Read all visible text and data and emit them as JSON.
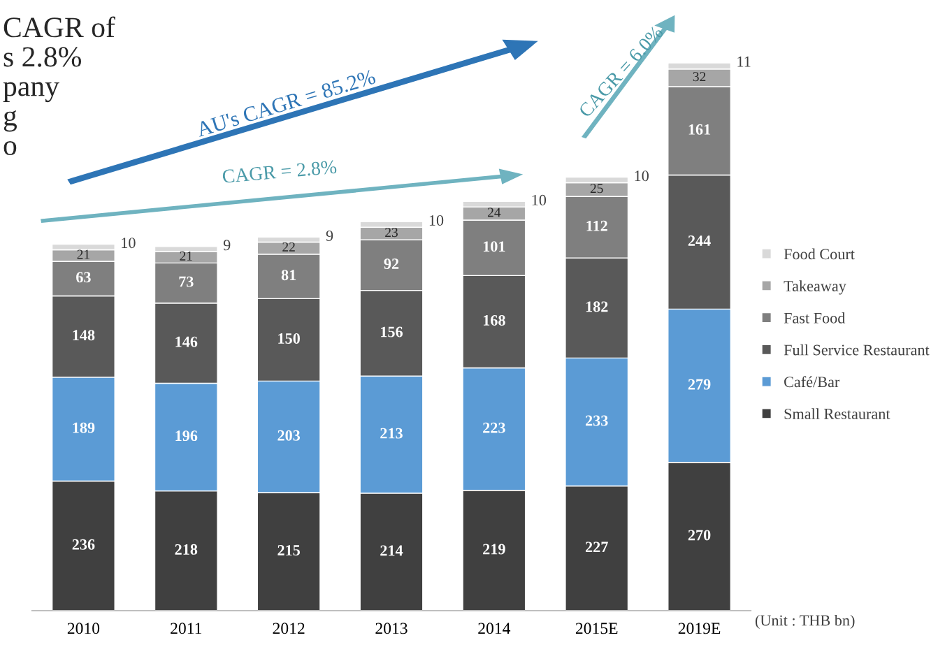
{
  "chart_data": {
    "type": "bar",
    "stacked": true,
    "data_labels": true,
    "legend": "right",
    "grid": false,
    "categories": [
      "2010",
      "2011",
      "2012",
      "2013",
      "2014",
      "2015E",
      "2019E"
    ],
    "series": [
      {
        "name": "Small Restaurant",
        "color": "#404040",
        "values": [
          236,
          218,
          215,
          214,
          219,
          227,
          270
        ]
      },
      {
        "name": "Café/Bar",
        "color": "#5b9bd5",
        "values": [
          189,
          196,
          203,
          213,
          223,
          233,
          279
        ]
      },
      {
        "name": "Full Service Restaurant",
        "color": "#595959",
        "values": [
          148,
          146,
          150,
          156,
          168,
          182,
          244
        ]
      },
      {
        "name": "Fast Food",
        "color": "#7f7f7f",
        "values": [
          63,
          73,
          81,
          92,
          101,
          112,
          161
        ]
      },
      {
        "name": "Takeaway",
        "color": "#a6a6a6",
        "values": [
          21,
          21,
          22,
          23,
          24,
          25,
          32
        ]
      },
      {
        "name": "Food Court",
        "color": "#d9d9d9",
        "values": [
          10,
          9,
          9,
          10,
          10,
          10,
          11
        ]
      }
    ],
    "annotations": [
      "AU's CAGR = 85.2%",
      "CAGR = 2.8%",
      "CAGR = 6.0%",
      "(Unit : THB bn)",
      "CAGR of\ns 2.8%\npany\ng\no"
    ]
  }
}
